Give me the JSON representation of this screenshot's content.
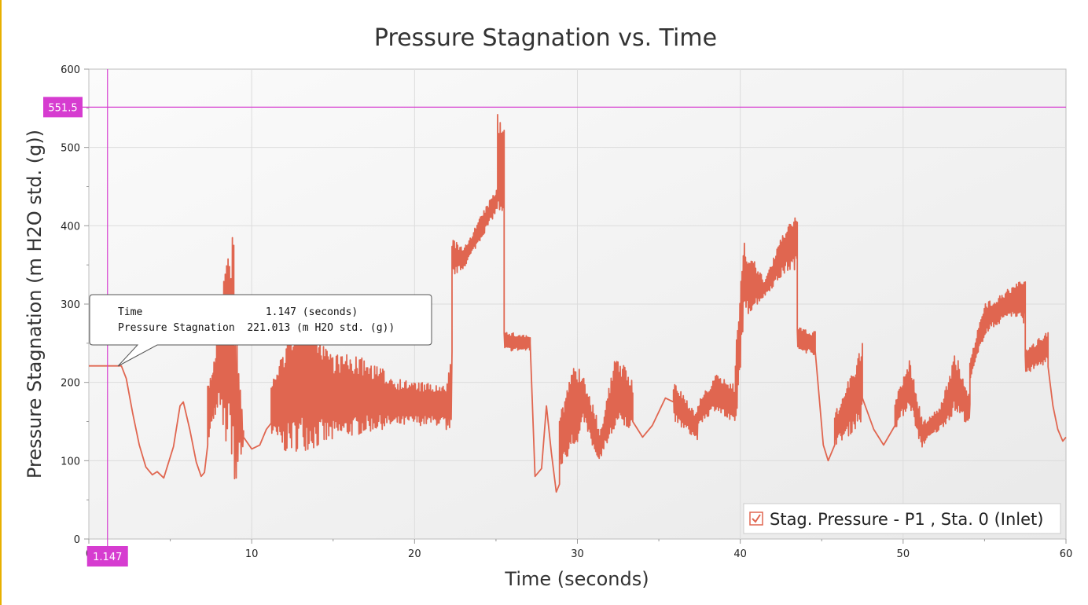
{
  "chart_data": {
    "type": "line",
    "title": "Pressure Stagnation vs. Time",
    "xlabel": "Time (seconds)",
    "ylabel": "Pressure Stagnation (m H2O std. (g))",
    "xlim": [
      0,
      60
    ],
    "ylim": [
      0,
      600
    ],
    "x_ticks": [
      0,
      10,
      20,
      30,
      40,
      50,
      60
    ],
    "x_tick_labels": [
      "0",
      "10",
      "20",
      "30",
      "40",
      "50",
      "60"
    ],
    "y_ticks": [
      0,
      100,
      200,
      300,
      400,
      500,
      600
    ],
    "y_tick_labels": [
      "0",
      "100",
      "200",
      "300",
      "400",
      "500",
      "600"
    ],
    "grid": true,
    "legend_position": "bottom-right",
    "series": [
      {
        "name": "Stag. Pressure - P1 , Sta. 0 (Inlet)",
        "color": "#e06650",
        "checked": true,
        "segments": [
          {
            "kind": "smooth",
            "points": [
              [
                0,
                221
              ],
              [
                2,
                221
              ],
              [
                2.3,
                205
              ],
              [
                2.7,
                160
              ],
              [
                3.1,
                120
              ],
              [
                3.5,
                92
              ],
              [
                3.9,
                82
              ],
              [
                4.2,
                86
              ],
              [
                4.6,
                78
              ],
              [
                5.2,
                118
              ],
              [
                5.6,
                170
              ],
              [
                5.8,
                175
              ],
              [
                6.2,
                140
              ],
              [
                6.6,
                98
              ],
              [
                6.9,
                80
              ],
              [
                7.1,
                85
              ],
              [
                7.3,
                120
              ]
            ]
          },
          {
            "kind": "noisy",
            "start": 7.3,
            "end": 7.85,
            "lower": [
              [
                7.3,
                120
              ],
              [
                7.85,
                165
              ]
            ],
            "upper": [
              [
                7.3,
                195
              ],
              [
                7.85,
                250
              ]
            ],
            "density": 20
          },
          {
            "kind": "noisy",
            "start": 7.85,
            "end": 8.9,
            "lower": [
              [
                7.85,
                170
              ],
              [
                8.3,
                120
              ],
              [
                8.9,
                100
              ]
            ],
            "upper": [
              [
                7.85,
                270
              ],
              [
                8.3,
                350
              ],
              [
                8.9,
                415
              ]
            ],
            "density": 24
          },
          {
            "kind": "noisy",
            "start": 8.9,
            "end": 9.5,
            "lower": [
              [
                8.9,
                60
              ],
              [
                9.5,
                120
              ]
            ],
            "upper": [
              [
                8.9,
                330
              ],
              [
                9.5,
                140
              ]
            ],
            "density": 12
          },
          {
            "kind": "smooth",
            "points": [
              [
                9.5,
                130
              ],
              [
                10,
                115
              ],
              [
                10.5,
                120
              ],
              [
                10.9,
                140
              ],
              [
                11.2,
                148
              ]
            ]
          },
          {
            "kind": "noisy",
            "start": 11.2,
            "end": 21.9,
            "lower": [
              [
                11.2,
                130
              ],
              [
                12,
                110
              ],
              [
                14,
                115
              ],
              [
                16,
                130
              ],
              [
                18,
                140
              ],
              [
                20,
                145
              ],
              [
                21.9,
                145
              ]
            ],
            "upper": [
              [
                11.2,
                200
              ],
              [
                12,
                250
              ],
              [
                13,
                310
              ],
              [
                15,
                240
              ],
              [
                17,
                230
              ],
              [
                19,
                205
              ],
              [
                21.9,
                195
              ]
            ],
            "density": 300
          },
          {
            "kind": "noisy",
            "start": 21.9,
            "end": 22.3,
            "lower": [
              [
                21.9,
                140
              ],
              [
                22.3,
                125
              ]
            ],
            "upper": [
              [
                21.9,
                200
              ],
              [
                22.3,
                265
              ]
            ],
            "density": 8
          },
          {
            "kind": "noisy",
            "start": 22.3,
            "end": 25.1,
            "lower": [
              [
                22.3,
                335
              ],
              [
                23,
                345
              ],
              [
                24,
                380
              ],
              [
                25.1,
                420
              ]
            ],
            "upper": [
              [
                22.3,
                385
              ],
              [
                23,
                370
              ],
              [
                24,
                410
              ],
              [
                25.1,
                450
              ]
            ],
            "density": 80
          },
          {
            "kind": "noisy",
            "start": 25.1,
            "end": 25.5,
            "lower": [
              [
                25.1,
                400
              ],
              [
                25.5,
                380
              ]
            ],
            "upper": [
              [
                25.1,
                551.5
              ],
              [
                25.5,
                551.5
              ]
            ],
            "density": 10
          },
          {
            "kind": "noisy",
            "start": 25.5,
            "end": 27.1,
            "lower": [
              [
                25.5,
                240
              ],
              [
                27.1,
                240
              ]
            ],
            "upper": [
              [
                25.5,
                265
              ],
              [
                27.1,
                260
              ]
            ],
            "density": 40
          },
          {
            "kind": "smooth",
            "points": [
              [
                27.1,
                250
              ],
              [
                27.4,
                80
              ],
              [
                27.8,
                90
              ],
              [
                28.1,
                170
              ],
              [
                28.4,
                110
              ],
              [
                28.7,
                60
              ],
              [
                28.9,
                70
              ]
            ]
          },
          {
            "kind": "noisy",
            "start": 28.9,
            "end": 29.9,
            "lower": [
              [
                28.9,
                90
              ],
              [
                29.9,
                120
              ]
            ],
            "upper": [
              [
                28.9,
                160
              ],
              [
                29.9,
                230
              ]
            ],
            "density": 30
          },
          {
            "kind": "noisy",
            "start": 29.9,
            "end": 31.3,
            "lower": [
              [
                29.9,
                100
              ],
              [
                30.4,
                150
              ],
              [
                31.3,
                90
              ]
            ],
            "upper": [
              [
                29.9,
                230
              ],
              [
                30.4,
                205
              ],
              [
                31.3,
                150
              ]
            ],
            "density": 40
          },
          {
            "kind": "noisy",
            "start": 31.3,
            "end": 33.4,
            "lower": [
              [
                31.3,
                100
              ],
              [
                32.4,
                140
              ],
              [
                33.4,
                140
              ]
            ],
            "upper": [
              [
                31.3,
                130
              ],
              [
                32.4,
                240
              ],
              [
                33.4,
                200
              ]
            ],
            "density": 60
          },
          {
            "kind": "smooth",
            "points": [
              [
                33.4,
                150
              ],
              [
                34,
                130
              ],
              [
                34.6,
                145
              ],
              [
                35.4,
                180
              ],
              [
                35.9,
                175
              ]
            ]
          },
          {
            "kind": "noisy",
            "start": 35.9,
            "end": 37.4,
            "lower": [
              [
                35.9,
                150
              ],
              [
                37.4,
                125
              ]
            ],
            "upper": [
              [
                35.9,
                200
              ],
              [
                37.4,
                160
              ]
            ],
            "density": 40
          },
          {
            "kind": "noisy",
            "start": 37.4,
            "end": 39.7,
            "lower": [
              [
                37.4,
                145
              ],
              [
                38.5,
                165
              ],
              [
                39.7,
                140
              ]
            ],
            "upper": [
              [
                37.4,
                175
              ],
              [
                38.5,
                210
              ],
              [
                39.7,
                200
              ]
            ],
            "density": 60
          },
          {
            "kind": "noisy",
            "start": 39.7,
            "end": 43.5,
            "lower": [
              [
                39.7,
                120
              ],
              [
                40.2,
                280
              ],
              [
                41.5,
                310
              ],
              [
                42.8,
                340
              ],
              [
                43.5,
                345
              ]
            ],
            "upper": [
              [
                39.7,
                240
              ],
              [
                40.2,
                380
              ],
              [
                41.5,
                330
              ],
              [
                42.8,
                400
              ],
              [
                43.5,
                420
              ]
            ],
            "density": 110
          },
          {
            "kind": "noisy",
            "start": 43.5,
            "end": 44.6,
            "lower": [
              [
                43.5,
                240
              ],
              [
                44.6,
                235
              ]
            ],
            "upper": [
              [
                43.5,
                270
              ],
              [
                44.6,
                265
              ]
            ],
            "density": 30
          },
          {
            "kind": "smooth",
            "points": [
              [
                44.6,
                240
              ],
              [
                45.1,
                120
              ],
              [
                45.4,
                100
              ],
              [
                45.8,
                120
              ]
            ]
          },
          {
            "kind": "noisy",
            "start": 45.8,
            "end": 47.5,
            "lower": [
              [
                45.8,
                120
              ],
              [
                46.6,
                130
              ],
              [
                47.5,
                150
              ]
            ],
            "upper": [
              [
                45.8,
                160
              ],
              [
                46.6,
                200
              ],
              [
                47.5,
                250
              ]
            ],
            "density": 50
          },
          {
            "kind": "smooth",
            "points": [
              [
                47.5,
                180
              ],
              [
                48.2,
                140
              ],
              [
                48.8,
                120
              ],
              [
                49.5,
                145
              ]
            ]
          },
          {
            "kind": "noisy",
            "start": 49.5,
            "end": 51.2,
            "lower": [
              [
                49.5,
                140
              ],
              [
                50.4,
                170
              ],
              [
                51.2,
                110
              ]
            ],
            "upper": [
              [
                49.5,
                180
              ],
              [
                50.4,
                230
              ],
              [
                51.2,
                150
              ]
            ],
            "density": 50
          },
          {
            "kind": "noisy",
            "start": 51.2,
            "end": 54.1,
            "lower": [
              [
                51.2,
                120
              ],
              [
                52.3,
                140
              ],
              [
                53.2,
                160
              ],
              [
                54.1,
                145
              ]
            ],
            "upper": [
              [
                51.2,
                150
              ],
              [
                52.3,
                170
              ],
              [
                53.2,
                240
              ],
              [
                54.1,
                180
              ]
            ],
            "density": 80
          },
          {
            "kind": "noisy",
            "start": 54.1,
            "end": 57.5,
            "lower": [
              [
                54.1,
                200
              ],
              [
                55,
                260
              ],
              [
                56.5,
                285
              ],
              [
                57.5,
                275
              ]
            ],
            "upper": [
              [
                54.1,
                230
              ],
              [
                55,
                300
              ],
              [
                56.5,
                320
              ],
              [
                57.5,
                335
              ]
            ],
            "density": 100
          },
          {
            "kind": "noisy",
            "start": 57.5,
            "end": 58.9,
            "lower": [
              [
                57.5,
                210
              ],
              [
                58.9,
                225
              ]
            ],
            "upper": [
              [
                57.5,
                240
              ],
              [
                58.9,
                270
              ]
            ],
            "density": 40
          },
          {
            "kind": "smooth",
            "points": [
              [
                58.9,
                220
              ],
              [
                59.2,
                170
              ],
              [
                59.5,
                140
              ],
              [
                59.8,
                125
              ],
              [
                60,
                130
              ]
            ]
          }
        ]
      }
    ],
    "crosshair": {
      "x": 1.147,
      "y": 551.5,
      "x_label": "1.147",
      "y_label": "551.5",
      "color": "#d63cd0"
    },
    "tooltip": {
      "line1": "Time                    1.147 (seconds)",
      "line2": "Pressure Stagnation  221.013 (m H2O std. (g))"
    }
  }
}
